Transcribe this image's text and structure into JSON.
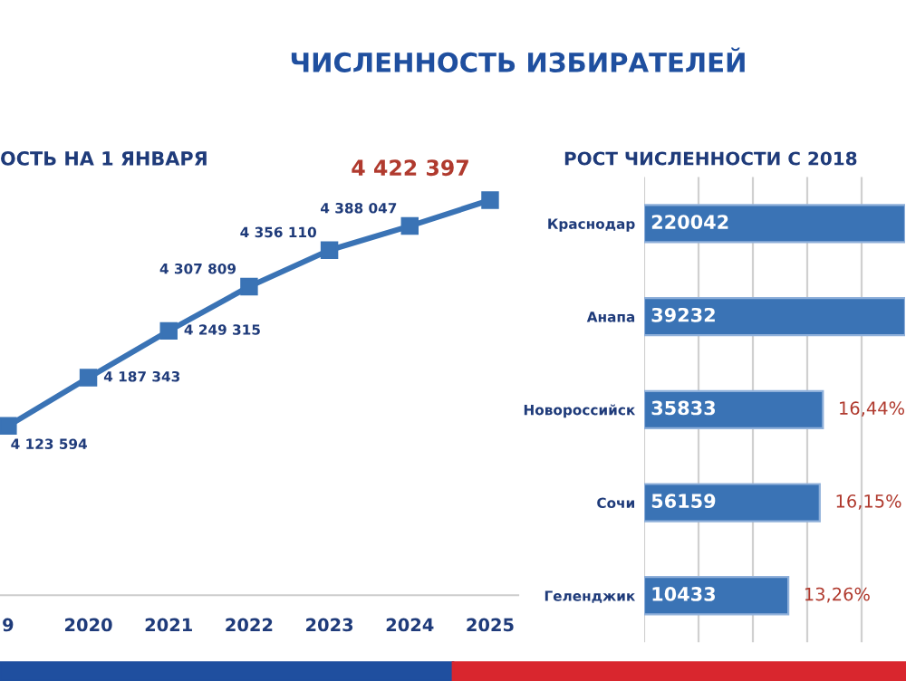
{
  "chart_data": [
    {
      "type": "line",
      "title": "ЧИСЛЕННОСТЬ ИЗБИРАТЕЛЕЙ",
      "subtitle": "ОСТЬ НА 1 ЯНВАРЯ",
      "categories": [
        "9",
        "2020",
        "2021",
        "2022",
        "2023",
        "2024",
        "2025"
      ],
      "series": [
        {
          "color": "#3a73b5",
          "values": [
            4123594,
            4187343,
            4249315,
            4307809,
            4356110,
            4388047,
            4422397
          ]
        }
      ],
      "data_labels": true,
      "tick_labels": "x",
      "marker": "square",
      "line_style": "solid"
    },
    {
      "type": "bar",
      "orientation": "horizontal",
      "title": "РОСТ ЧИСЛЕННОСТИ С 2018",
      "categories": [
        "Краснодар",
        "Анапа",
        "Новороссийск",
        "Сочи",
        "Геленджик"
      ],
      "values": [
        24,
        24,
        16.44,
        16.15,
        13.26
      ],
      "color": "#3a73b5",
      "value_labels": [
        null,
        null,
        "16,44%",
        "16,15%",
        "13,26%"
      ],
      "annotations": [
        "220042",
        "39232",
        "35833",
        "56159",
        "10433"
      ],
      "tick_labels": "y",
      "grid": "x"
    }
  ]
}
